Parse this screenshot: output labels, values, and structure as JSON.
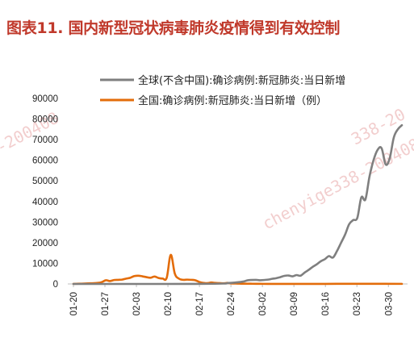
{
  "title": "图表11. 国内新型冠状病毒肺炎疫情得到有效控制",
  "watermark": {
    "text_1": "chenyige338-200408",
    "text_2": "chenyige338-200408",
    "text_3": "-200408",
    "text_4": "338-20",
    "color": "#e9a7a7"
  },
  "chart_data": {
    "type": "line",
    "legend_position": "top-right",
    "grid": false,
    "ylim": [
      0,
      90000
    ],
    "yticks": [
      0,
      10000,
      20000,
      30000,
      40000,
      50000,
      60000,
      70000,
      80000,
      90000
    ],
    "xticks": [
      "01-20",
      "01-27",
      "02-03",
      "02-10",
      "02-17",
      "02-24",
      "03-02",
      "03-09",
      "03-16",
      "03-23",
      "03-30"
    ],
    "x_start": "01-20",
    "x_end": "04-02",
    "series": [
      {
        "name": "全球(不含中国):确诊病例:新冠肺炎:当日新增",
        "color": "#7f7f7f",
        "points": [
          [
            0,
            0
          ],
          [
            10,
            0
          ],
          [
            20,
            5
          ],
          [
            30,
            15
          ],
          [
            37,
            200
          ],
          [
            38,
            400
          ],
          [
            40,
            700
          ],
          [
            42,
            1200
          ],
          [
            43,
            1800
          ],
          [
            45,
            2000
          ],
          [
            46,
            1800
          ],
          [
            48,
            2100
          ],
          [
            49,
            2500
          ],
          [
            50,
            2800
          ],
          [
            51,
            3300
          ],
          [
            52,
            3900
          ],
          [
            53,
            4100
          ],
          [
            54,
            3700
          ],
          [
            55,
            4300
          ],
          [
            56,
            4000
          ],
          [
            57,
            5500
          ],
          [
            58,
            6800
          ],
          [
            59,
            8300
          ],
          [
            60,
            9500
          ],
          [
            61,
            11000
          ],
          [
            62,
            12000
          ],
          [
            63,
            13500
          ],
          [
            64,
            12800
          ],
          [
            65,
            16000
          ],
          [
            66,
            20000
          ],
          [
            67,
            24000
          ],
          [
            68,
            29000
          ],
          [
            69,
            31000
          ],
          [
            70,
            32000
          ],
          [
            71,
            42000
          ],
          [
            72,
            41000
          ],
          [
            73,
            52000
          ],
          [
            74,
            60000
          ],
          [
            75,
            65000
          ],
          [
            76,
            65800
          ],
          [
            77,
            58000
          ],
          [
            78,
            61000
          ],
          [
            79,
            71000
          ],
          [
            80,
            75000
          ],
          [
            81,
            77000
          ]
        ]
      },
      {
        "name": "全国:确诊病例:新冠肺炎:当日新增（例）",
        "color": "#e36c0a",
        "points": [
          [
            0,
            50
          ],
          [
            2,
            150
          ],
          [
            4,
            300
          ],
          [
            6,
            500
          ],
          [
            7,
            900
          ],
          [
            8,
            1800
          ],
          [
            9,
            1400
          ],
          [
            10,
            1900
          ],
          [
            11,
            2000
          ],
          [
            12,
            2100
          ],
          [
            13,
            2600
          ],
          [
            14,
            3000
          ],
          [
            15,
            3800
          ],
          [
            16,
            4000
          ],
          [
            17,
            3700
          ],
          [
            18,
            3300
          ],
          [
            19,
            3000
          ],
          [
            20,
            3600
          ],
          [
            21,
            2900
          ],
          [
            22,
            2600
          ],
          [
            23,
            3000
          ],
          [
            24,
            14100
          ],
          [
            25,
            5000
          ],
          [
            26,
            2600
          ],
          [
            27,
            2000
          ],
          [
            28,
            2100
          ],
          [
            29,
            2000
          ],
          [
            30,
            1800
          ],
          [
            31,
            1000
          ],
          [
            32,
            500
          ],
          [
            33,
            400
          ],
          [
            34,
            700
          ],
          [
            35,
            500
          ],
          [
            36,
            400
          ],
          [
            37,
            300
          ],
          [
            38,
            500
          ],
          [
            39,
            250
          ],
          [
            40,
            200
          ],
          [
            41,
            150
          ],
          [
            42,
            120
          ],
          [
            44,
            100
          ],
          [
            46,
            60
          ],
          [
            48,
            40
          ],
          [
            51,
            30
          ],
          [
            56,
            25
          ],
          [
            62,
            40
          ],
          [
            68,
            70
          ],
          [
            74,
            60
          ],
          [
            81,
            50
          ]
        ]
      }
    ]
  }
}
